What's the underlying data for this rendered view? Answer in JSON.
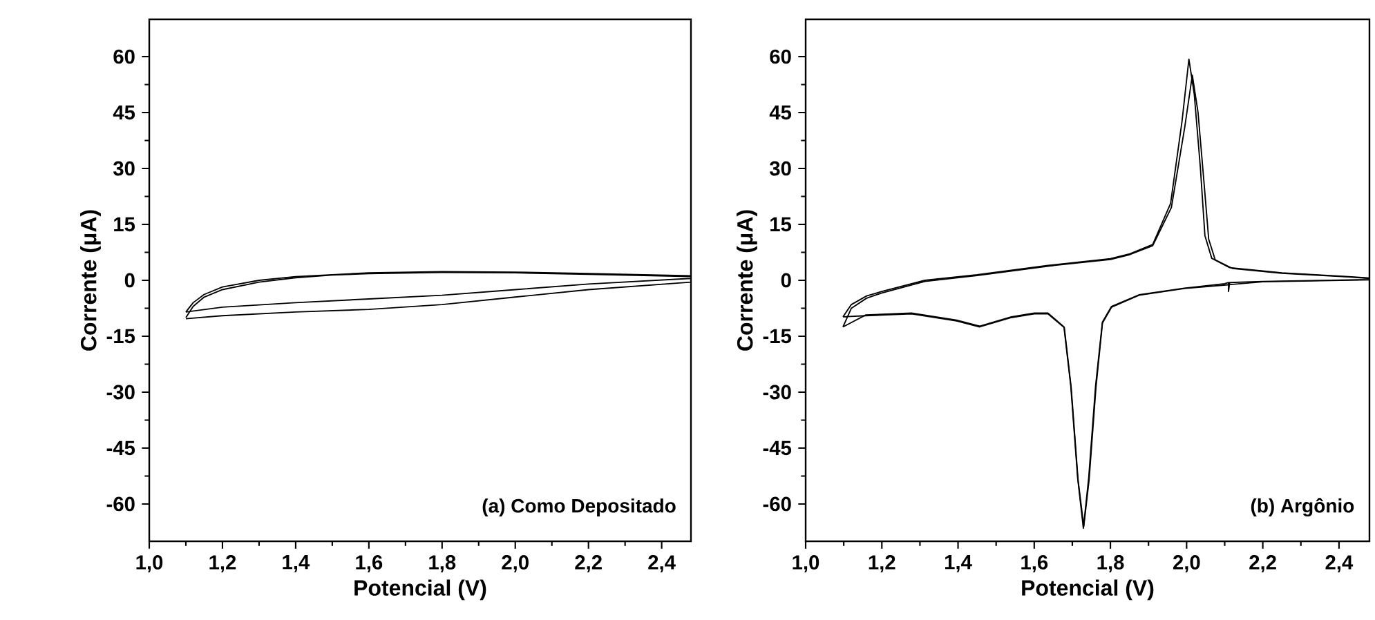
{
  "chart_data": [
    {
      "type": "line",
      "xlabel": "Potencial (V)",
      "ylabel": "Corrente (μA)",
      "annotations": [
        "(a) Como Depositado"
      ],
      "marker": "none",
      "line_style": "solid",
      "xlim": [
        1.0,
        2.48
      ],
      "ylim": [
        -70,
        70
      ],
      "xticks": [
        {
          "value": 1.0,
          "label": "1,0"
        },
        {
          "value": 1.2,
          "label": "1,2"
        },
        {
          "value": 1.4,
          "label": "1,4"
        },
        {
          "value": 1.6,
          "label": "1,6"
        },
        {
          "value": 1.8,
          "label": "1,8"
        },
        {
          "value": 2.0,
          "label": "2,0"
        },
        {
          "value": 2.2,
          "label": "2,2"
        },
        {
          "value": 2.4,
          "label": "2,4"
        }
      ],
      "yticks": [
        -60,
        -45,
        -30,
        -15,
        0,
        15,
        30,
        45,
        60
      ],
      "series": [
        {
          "color": "#000000",
          "x": [
            1.1,
            1.12,
            1.15,
            1.2,
            1.3,
            1.4,
            1.5,
            1.6,
            1.8,
            2.0,
            2.2,
            2.48,
            2.48,
            2.2,
            2.0,
            1.8,
            1.6,
            1.4,
            1.2,
            1.1
          ],
          "values": [
            -10,
            -7,
            -4.5,
            -2.5,
            -0.5,
            0.7,
            1.4,
            1.8,
            2.1,
            2.0,
            1.6,
            1.0,
            0.5,
            -1.0,
            -2.5,
            -4.0,
            -5.0,
            -6.0,
            -7.2,
            -8.5
          ]
        },
        {
          "color": "#000000",
          "x": [
            1.1,
            1.12,
            1.15,
            1.2,
            1.3,
            1.4,
            1.6,
            1.8,
            2.0,
            2.2,
            2.48,
            2.48,
            2.2,
            2.0,
            1.8,
            1.6,
            1.4,
            1.2,
            1.1
          ],
          "values": [
            -8.5,
            -6,
            -3.8,
            -1.8,
            0,
            1.0,
            2.0,
            2.3,
            2.2,
            1.8,
            1.2,
            -0.5,
            -2.5,
            -4.5,
            -6.5,
            -7.8,
            -8.5,
            -9.5,
            -10.3
          ]
        }
      ]
    },
    {
      "type": "line",
      "xlabel": "Potencial (V)",
      "ylabel": "Corrente (μA)",
      "annotations": [
        "(b) Argônio"
      ],
      "marker": "none",
      "line_style": "solid",
      "xlim": [
        1.0,
        2.48
      ],
      "ylim": [
        -70,
        70
      ],
      "xticks": [
        {
          "value": 1.0,
          "label": "1,0"
        },
        {
          "value": 1.2,
          "label": "1,2"
        },
        {
          "value": 1.4,
          "label": "1,4"
        },
        {
          "value": 1.6,
          "label": "1,6"
        },
        {
          "value": 1.8,
          "label": "1,8"
        },
        {
          "value": 2.0,
          "label": "2,0"
        },
        {
          "value": 2.2,
          "label": "2,2"
        },
        {
          "value": 2.4,
          "label": "2,4"
        }
      ],
      "yticks": [
        -60,
        -45,
        -30,
        -15,
        0,
        15,
        30,
        45,
        60
      ],
      "series": [
        {
          "color": "#000000",
          "x": [
            1.098,
            1.12,
            1.16,
            1.2,
            1.313,
            1.45,
            1.636,
            1.8,
            1.851,
            1.911,
            1.958,
            1.988,
            2.006,
            2.02,
            2.036,
            2.048,
            2.066,
            2.113,
            2.25,
            2.425,
            2.48,
            2.48,
            2.2,
            2.113,
            2.11,
            2.11,
            2.1,
            1.994,
            1.875,
            1.803,
            1.779,
            1.761,
            1.743,
            1.729,
            1.714,
            1.696,
            1.678,
            1.636,
            1.6,
            1.54,
            1.457,
            1.396,
            1.278,
            1.158,
            1.098
          ],
          "values": [
            -9.8,
            -6.5,
            -4.2,
            -3.0,
            0,
            1.5,
            4.0,
            5.8,
            7.1,
            9.6,
            20.6,
            42.7,
            59.3,
            50,
            30.4,
            12,
            5.9,
            3.4,
            2.0,
            1.0,
            0.6,
            0.2,
            -0.3,
            -0.6,
            -3,
            -0.6,
            -0.9,
            -2.1,
            -3.9,
            -7,
            -11.2,
            -28.4,
            -53,
            -66.5,
            -53,
            -28.4,
            -12.5,
            -8.8,
            -8.8,
            -9.8,
            -12.3,
            -10.7,
            -8.8,
            -9.3,
            -12.5
          ]
        },
        {
          "color": "#000000",
          "x": [
            1.098,
            1.12,
            1.16,
            1.2,
            1.313,
            1.45,
            1.636,
            1.8,
            1.851,
            1.911,
            1.96,
            1.995,
            2.015,
            2.03,
            2.045,
            2.058,
            2.075,
            2.12,
            2.25,
            2.425,
            2.48,
            2.48,
            2.2,
            1.994,
            1.875,
            1.803,
            1.779,
            1.762,
            1.744,
            1.73,
            1.715,
            1.697,
            1.679,
            1.636,
            1.6,
            1.54,
            1.457,
            1.396,
            1.278,
            1.158,
            1.098
          ],
          "values": [
            -12.5,
            -7.5,
            -4.8,
            -3.4,
            -0.3,
            1.3,
            3.8,
            5.6,
            6.9,
            9.3,
            19.5,
            41.0,
            55.0,
            45,
            27,
            11,
            5.5,
            3.2,
            1.9,
            0.9,
            0.5,
            0.1,
            -0.4,
            -2.2,
            -4.0,
            -7.2,
            -11.5,
            -28.8,
            -53.5,
            -66,
            -53.5,
            -28.8,
            -12.7,
            -9.0,
            -9.0,
            -10.0,
            -12.5,
            -10.9,
            -9.0,
            -9.5,
            -9.8
          ]
        }
      ]
    }
  ]
}
